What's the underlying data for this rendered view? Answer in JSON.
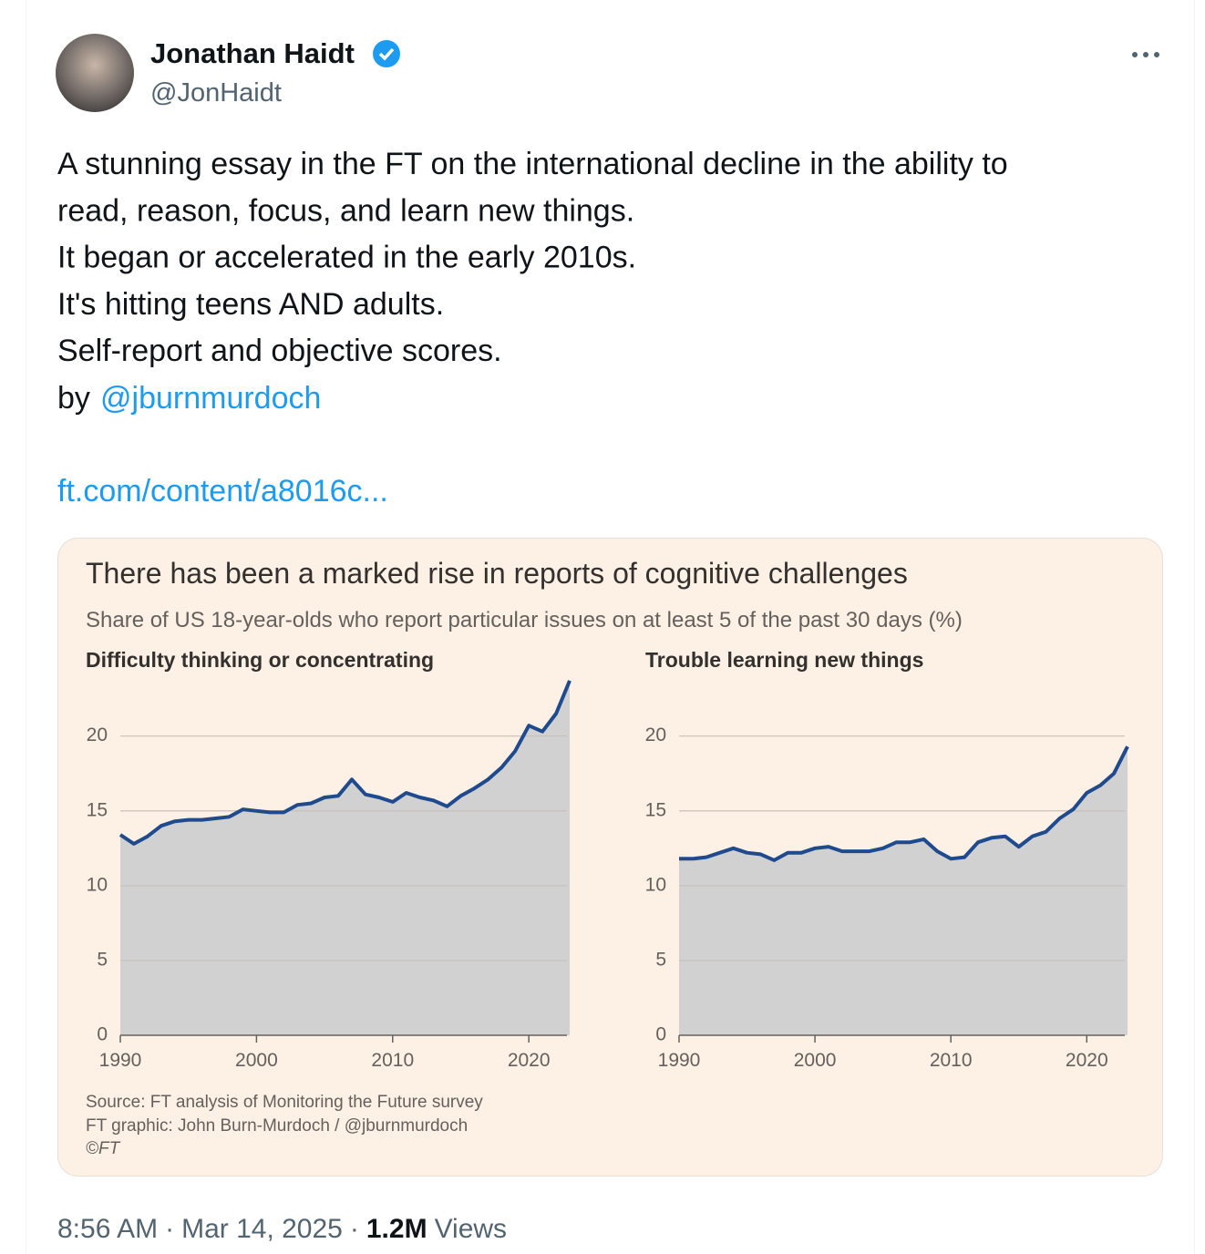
{
  "tweet": {
    "name": "Jonathan Haidt",
    "handle": "@JonHaidt",
    "text_lines": [
      "A stunning essay in the FT on the international decline in the ability to",
      "read, reason, focus, and learn new things.",
      "It began or accelerated in the early 2010s.",
      "It's hitting teens AND adults.",
      "Self-report and objective scores."
    ],
    "by": "by",
    "mention": "@jburnmurdoch",
    "link": "ft.com/content/a8016c...",
    "footer": {
      "time": "8:56 AM",
      "separator": "·",
      "date": "Mar 14, 2025",
      "views": "1.2M",
      "views_label": "Views"
    }
  },
  "figure": {
    "title": "There has been a marked rise in reports of cognitive challenges",
    "subtitle": "Share of US 18-year-olds who report particular issues on at least 5 of the past 30 days (%)",
    "source": [
      "Source: FT analysis of Monitoring the Future survey",
      "FT graphic: John Burn-Murdoch / @jburnmurdoch",
      "©FT"
    ]
  },
  "chart_data": [
    {
      "type": "area",
      "title": "Difficulty thinking or concentrating",
      "x": [
        1990,
        1991,
        1992,
        1993,
        1994,
        1995,
        1996,
        1997,
        1998,
        1999,
        2000,
        2001,
        2002,
        2003,
        2004,
        2005,
        2006,
        2007,
        2008,
        2009,
        2010,
        2011,
        2012,
        2013,
        2014,
        2015,
        2016,
        2017,
        2018,
        2019,
        2020,
        2021,
        2022,
        2023
      ],
      "values": [
        13.4,
        12.8,
        13.3,
        14.0,
        14.3,
        14.4,
        14.4,
        14.5,
        14.6,
        15.1,
        15.0,
        14.9,
        14.9,
        15.4,
        15.5,
        15.9,
        16.0,
        17.1,
        16.1,
        15.9,
        15.6,
        16.2,
        15.9,
        15.7,
        15.3,
        16.0,
        16.5,
        17.1,
        17.9,
        19.0,
        20.7,
        20.3,
        21.5,
        23.7
      ],
      "color": "#1f4b8e",
      "fill": "#d1d1d1",
      "xlim": [
        1990,
        2023
      ],
      "ylim": [
        0,
        24
      ],
      "xticks": [
        1990,
        2000,
        2010,
        2020
      ],
      "yticks": [
        0,
        5,
        10,
        15,
        20
      ],
      "grid": true
    },
    {
      "type": "area",
      "title": "Trouble learning new things",
      "x": [
        1990,
        1991,
        1992,
        1993,
        1994,
        1995,
        1996,
        1997,
        1998,
        1999,
        2000,
        2001,
        2002,
        2003,
        2004,
        2005,
        2006,
        2007,
        2008,
        2009,
        2010,
        2011,
        2012,
        2013,
        2014,
        2015,
        2016,
        2017,
        2018,
        2019,
        2020,
        2021,
        2022,
        2023
      ],
      "values": [
        11.8,
        11.8,
        11.9,
        12.2,
        12.5,
        12.2,
        12.1,
        11.7,
        12.2,
        12.2,
        12.5,
        12.6,
        12.3,
        12.3,
        12.3,
        12.5,
        12.9,
        12.9,
        13.1,
        12.3,
        11.8,
        11.9,
        12.9,
        13.2,
        13.3,
        12.6,
        13.3,
        13.6,
        14.5,
        15.1,
        16.2,
        16.7,
        17.5,
        19.3
      ],
      "color": "#1f4b8e",
      "fill": "#d1d1d1",
      "xlim": [
        1990,
        2023
      ],
      "ylim": [
        0,
        24
      ],
      "xticks": [
        1990,
        2000,
        2010,
        2020
      ],
      "yticks": [
        0,
        5,
        10,
        15,
        20
      ],
      "grid": true
    }
  ]
}
